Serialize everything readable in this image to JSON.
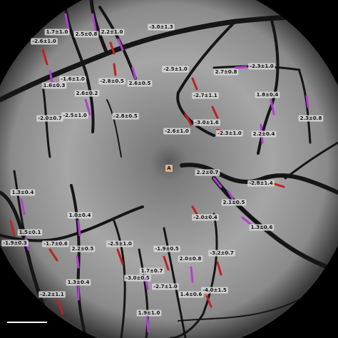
{
  "labels": [
    "1.7±1.0",
    "2.5±0.8",
    "2.2±1.0",
    "-3.0±1.3",
    "-2.6±1.0",
    "-2.5±1.0",
    "2.7±0.8",
    "-2.3±1.0",
    "-1.6±1.0",
    "1.6±0.3",
    "-2.8±0.5",
    "2.6±0.5",
    "2.6±0.2",
    "-2.7±1.1",
    "1.8±0.4",
    "-2.0±0.7",
    "-2.5±1.0",
    "-2.8±0.5",
    "-3.0±1.6",
    "-2.6±1.0",
    "-2.3±1.0",
    "2.2±0.4",
    "2.3±0.8",
    "2.2±0.7",
    "-2.8±1.4",
    "1.3±0.4",
    "2.1±0.5",
    "1.0±0.4",
    "-2.0±0.4",
    "1.3±0.6",
    "1.5±0.1",
    "-1.9±0.3",
    "-1.7±0.6",
    "2.2±0.5",
    "-2.5±1.0",
    "-1.9±0.5",
    "-3.2±0.7",
    "2.0±0.8",
    "1.7±0.7",
    "-3.0±0.5",
    "-2.7±1.0",
    "1.3±0.4",
    "1.4±0.6",
    "-4.0±1.5",
    "-2.2±1.1",
    "1.9±1.0"
  ],
  "fovea_marker": "A"
}
